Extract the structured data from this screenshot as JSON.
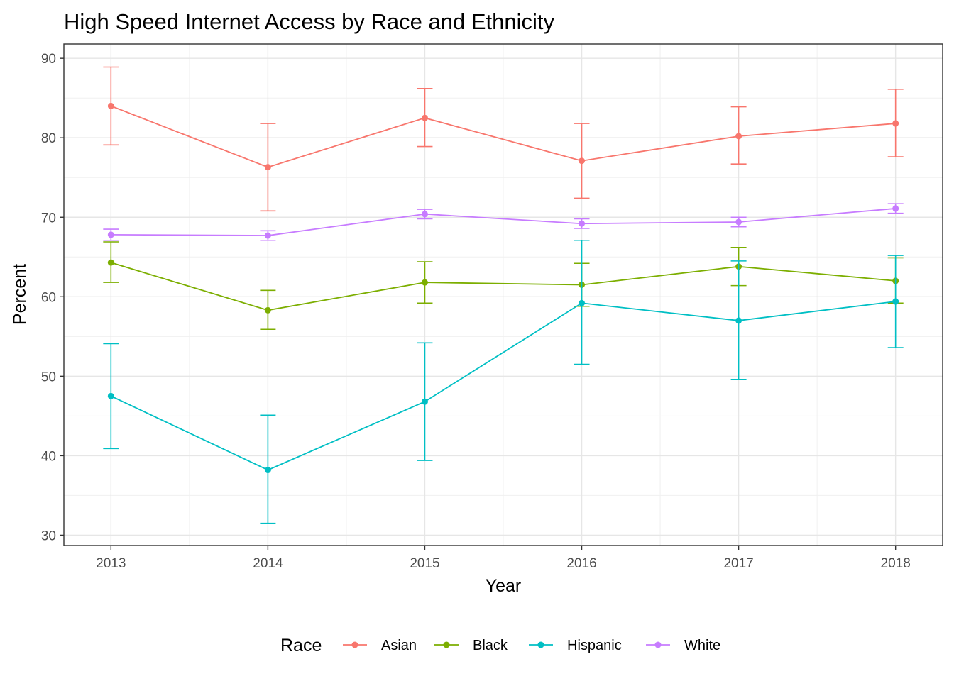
{
  "chart_data": {
    "type": "line",
    "title": "High Speed Internet Access by Race and Ethnicity",
    "xlabel": "Year",
    "ylabel": "Percent",
    "x": [
      2013,
      2014,
      2015,
      2016,
      2017,
      2018
    ],
    "x_tick_labels": [
      "2013",
      "2014",
      "2015",
      "2016",
      "2017",
      "2018"
    ],
    "y_ticks": [
      30,
      40,
      50,
      60,
      70,
      80,
      90
    ],
    "y_tick_labels": [
      "30",
      "40",
      "50",
      "60",
      "70",
      "80",
      "90"
    ],
    "xlim": [
      2012.7,
      2018.3
    ],
    "ylim": [
      28.7,
      91.8
    ],
    "grid": true,
    "legend_position": "bottom",
    "legend_title": "Race",
    "series": [
      {
        "name": "Asian",
        "color": "#F8766D",
        "values": [
          84.0,
          76.3,
          82.5,
          77.1,
          80.2,
          81.8
        ],
        "lower": [
          79.1,
          70.8,
          78.9,
          72.4,
          76.7,
          77.6
        ],
        "upper": [
          88.9,
          81.8,
          86.2,
          81.8,
          83.9,
          86.1
        ]
      },
      {
        "name": "Black",
        "color": "#7CAE00",
        "values": [
          64.3,
          58.3,
          61.8,
          61.5,
          63.8,
          62.0
        ],
        "lower": [
          61.8,
          55.9,
          59.2,
          58.8,
          61.4,
          59.2
        ],
        "upper": [
          66.9,
          60.8,
          64.4,
          64.2,
          66.2,
          64.9
        ]
      },
      {
        "name": "Hispanic",
        "color": "#00BFC4",
        "values": [
          47.5,
          38.2,
          46.8,
          59.2,
          57.0,
          59.4
        ],
        "lower": [
          40.9,
          31.5,
          39.4,
          51.5,
          49.6,
          53.6
        ],
        "upper": [
          54.1,
          45.1,
          54.2,
          67.1,
          64.5,
          65.2
        ]
      },
      {
        "name": "White",
        "color": "#C77CFF",
        "values": [
          67.8,
          67.7,
          70.4,
          69.2,
          69.4,
          71.1
        ],
        "lower": [
          67.1,
          67.1,
          69.8,
          68.6,
          68.8,
          70.5
        ],
        "upper": [
          68.5,
          68.3,
          71.0,
          69.8,
          70.0,
          71.7
        ]
      }
    ]
  }
}
